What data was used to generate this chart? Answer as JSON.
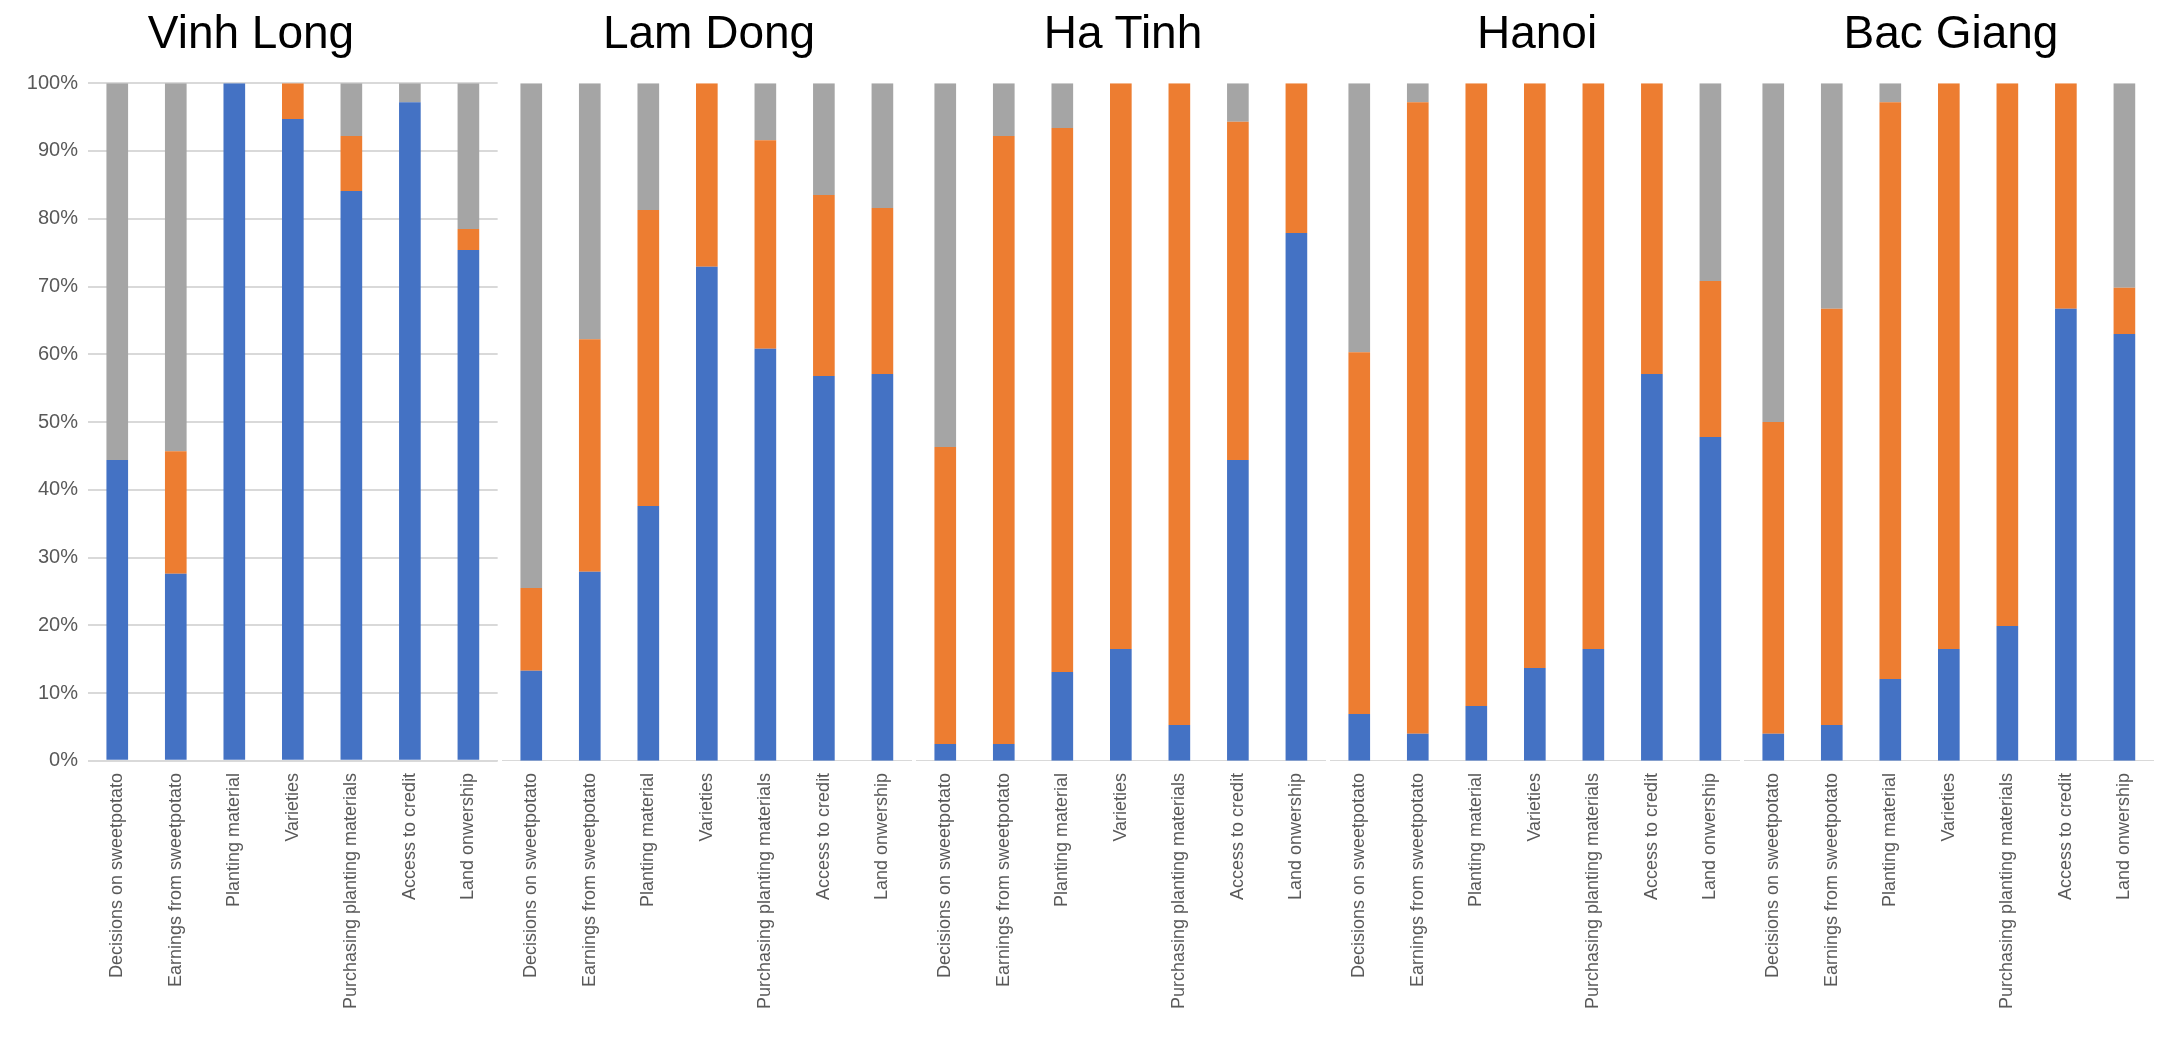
{
  "chart_data": [
    {
      "type": "bar",
      "title": "Vinh Long",
      "stacked": true,
      "grid": "y",
      "categories": [
        "Decisions on sweetpotato",
        "Earnings from sweetpotato",
        "Planting material",
        "Varieties",
        "Purchasing planting materials",
        "Access to credit",
        "Land onwership"
      ],
      "series": [
        {
          "color": "#4472c4",
          "values": [
            44.4,
            27.6,
            100,
            94.7,
            84.1,
            97.2,
            75.4
          ]
        },
        {
          "color": "#ed7d31",
          "values": [
            0,
            18.1,
            0,
            5.3,
            8.1,
            0,
            3.1
          ]
        },
        {
          "color": "#a5a5a5",
          "values": [
            55.6,
            54.3,
            0,
            0,
            7.8,
            2.8,
            21.5
          ]
        }
      ],
      "ylim": [
        0,
        100
      ],
      "yticks": [
        {
          "value": 0,
          "label": "0%"
        },
        {
          "value": 10,
          "label": "10%"
        },
        {
          "value": 20,
          "label": "20%"
        },
        {
          "value": 30,
          "label": "30%"
        },
        {
          "value": 40,
          "label": "40%"
        },
        {
          "value": 50,
          "label": "50%"
        },
        {
          "value": 60,
          "label": "60%"
        },
        {
          "value": 70,
          "label": "70%"
        },
        {
          "value": 80,
          "label": "80%"
        },
        {
          "value": 90,
          "label": "90%"
        },
        {
          "value": 100,
          "label": "100%"
        }
      ]
    },
    {
      "type": "bar",
      "title": "Lam Dong",
      "stacked": true,
      "grid": "y",
      "tick_labels": "x",
      "categories": [
        "Decisions on sweetpotato",
        "Earnings from sweetpotato",
        "Planting material",
        "Varieties",
        "Purchasing planting materials",
        "Access to credit",
        "Land onwership"
      ],
      "series": [
        {
          "color": "#4472c4",
          "values": [
            13.3,
            27.9,
            37.6,
            72.9,
            60.8,
            56.8,
            57.1
          ]
        },
        {
          "color": "#ed7d31",
          "values": [
            12.2,
            34.3,
            43.7,
            27.1,
            30.8,
            26.7,
            24.5
          ]
        },
        {
          "color": "#a5a5a5",
          "values": [
            74.5,
            37.8,
            18.7,
            0,
            8.4,
            16.5,
            18.4
          ]
        }
      ],
      "ylim": [
        0,
        100
      ],
      "yticks": [
        {
          "value": 0,
          "label": null
        },
        {
          "value": 10,
          "label": null
        },
        {
          "value": 20,
          "label": null
        },
        {
          "value": 30,
          "label": null
        },
        {
          "value": 40,
          "label": null
        },
        {
          "value": 50,
          "label": null
        },
        {
          "value": 60,
          "label": null
        },
        {
          "value": 70,
          "label": null
        },
        {
          "value": 80,
          "label": null
        },
        {
          "value": 90,
          "label": null
        },
        {
          "value": 100,
          "label": null
        }
      ]
    },
    {
      "type": "bar",
      "title": "Ha Tinh",
      "stacked": true,
      "grid": "y",
      "tick_labels": "x",
      "categories": [
        "Decisions on sweetpotato",
        "Earnings from sweetpotato",
        "Planting material",
        "Varieties",
        "Purchasing planting materials",
        "Access to credit",
        "Land onwership"
      ],
      "series": [
        {
          "color": "#4472c4",
          "values": [
            2.5,
            2.5,
            13.1,
            16.5,
            5.3,
            44.4,
            77.9
          ]
        },
        {
          "color": "#ed7d31",
          "values": [
            43.8,
            89.7,
            80.3,
            83.5,
            94.7,
            49.9,
            22.1
          ]
        },
        {
          "color": "#a5a5a5",
          "values": [
            53.7,
            7.8,
            6.6,
            0,
            0,
            5.7,
            0
          ]
        }
      ],
      "ylim": [
        0,
        100
      ],
      "yticks": [
        {
          "value": 0,
          "label": null
        },
        {
          "value": 10,
          "label": null
        },
        {
          "value": 20,
          "label": null
        },
        {
          "value": 30,
          "label": null
        },
        {
          "value": 40,
          "label": null
        },
        {
          "value": 50,
          "label": null
        },
        {
          "value": 60,
          "label": null
        },
        {
          "value": 70,
          "label": null
        },
        {
          "value": 80,
          "label": null
        },
        {
          "value": 90,
          "label": null
        },
        {
          "value": 100,
          "label": null
        }
      ]
    },
    {
      "type": "bar",
      "title": "Hanoi",
      "stacked": true,
      "grid": "y",
      "tick_labels": "x",
      "categories": [
        "Decisions on sweetpotato",
        "Earnings from sweetpotato",
        "Planting material",
        "Varieties",
        "Purchasing planting materials",
        "Access to credit",
        "Land onwership"
      ],
      "series": [
        {
          "color": "#4472c4",
          "values": [
            6.9,
            4.0,
            8.1,
            13.7,
            16.5,
            57.1,
            47.8
          ]
        },
        {
          "color": "#ed7d31",
          "values": [
            53.4,
            93.2,
            91.9,
            86.3,
            83.5,
            42.9,
            23.0
          ]
        },
        {
          "color": "#a5a5a5",
          "values": [
            39.7,
            2.8,
            0,
            0,
            0,
            0,
            29.2
          ]
        }
      ],
      "ylim": [
        0,
        100
      ],
      "yticks": [
        {
          "value": 0,
          "label": null
        },
        {
          "value": 10,
          "label": null
        },
        {
          "value": 20,
          "label": null
        },
        {
          "value": 30,
          "label": null
        },
        {
          "value": 40,
          "label": null
        },
        {
          "value": 50,
          "label": null
        },
        {
          "value": 60,
          "label": null
        },
        {
          "value": 70,
          "label": null
        },
        {
          "value": 80,
          "label": null
        },
        {
          "value": 90,
          "label": null
        },
        {
          "value": 100,
          "label": null
        }
      ]
    },
    {
      "type": "bar",
      "title": "Bac Giang",
      "stacked": true,
      "grid": "y",
      "tick_labels": "x",
      "categories": [
        "Decisions on sweetpotato",
        "Earnings from sweetpotato",
        "Planting material",
        "Varieties",
        "Purchasing planting materials",
        "Access to credit",
        "Land onwership"
      ],
      "series": [
        {
          "color": "#4472c4",
          "values": [
            4.0,
            5.3,
            12.1,
            16.5,
            19.9,
            66.7,
            63.0
          ]
        },
        {
          "color": "#ed7d31",
          "values": [
            46.0,
            61.4,
            85.1,
            83.5,
            80.1,
            33.3,
            6.8
          ]
        },
        {
          "color": "#a5a5a5",
          "values": [
            50.0,
            33.3,
            2.8,
            0,
            0,
            0,
            30.2
          ]
        }
      ],
      "ylim": [
        0,
        100
      ],
      "yticks": [
        {
          "value": 0,
          "label": null
        },
        {
          "value": 10,
          "label": null
        },
        {
          "value": 20,
          "label": null
        },
        {
          "value": 30,
          "label": null
        },
        {
          "value": 40,
          "label": null
        },
        {
          "value": 50,
          "label": null
        },
        {
          "value": 60,
          "label": null
        },
        {
          "value": 70,
          "label": null
        },
        {
          "value": 80,
          "label": null
        },
        {
          "value": 90,
          "label": null
        },
        {
          "value": 100,
          "label": null
        }
      ]
    }
  ]
}
